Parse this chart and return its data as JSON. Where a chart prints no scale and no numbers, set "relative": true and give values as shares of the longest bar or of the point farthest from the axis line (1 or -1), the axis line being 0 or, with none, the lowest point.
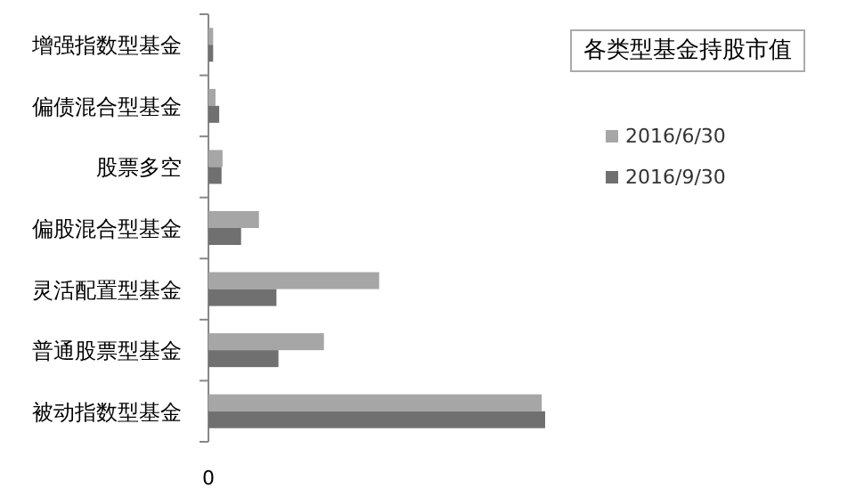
{
  "chart_data": {
    "type": "bar",
    "orientation": "horizontal",
    "relative": true,
    "title": "各类型基金持股市值",
    "categories": [
      "增强指数型基金",
      "偏债混合型基金",
      "股票多空",
      "偏股混合型基金",
      "灵活配置型基金",
      "普通股票型基金",
      "被动指数型基金"
    ],
    "series": [
      {
        "name": "2016/6/30",
        "color": "#a6a6a6",
        "values": [
          0.014,
          0.021,
          0.042,
          0.15,
          0.507,
          0.343,
          0.99
        ]
      },
      {
        "name": "2016/9/30",
        "color": "#707070",
        "values": [
          0.014,
          0.032,
          0.039,
          0.097,
          0.202,
          0.208,
          1
        ]
      }
    ],
    "legend": "right",
    "grid": false,
    "annotations": [
      "0"
    ]
  }
}
